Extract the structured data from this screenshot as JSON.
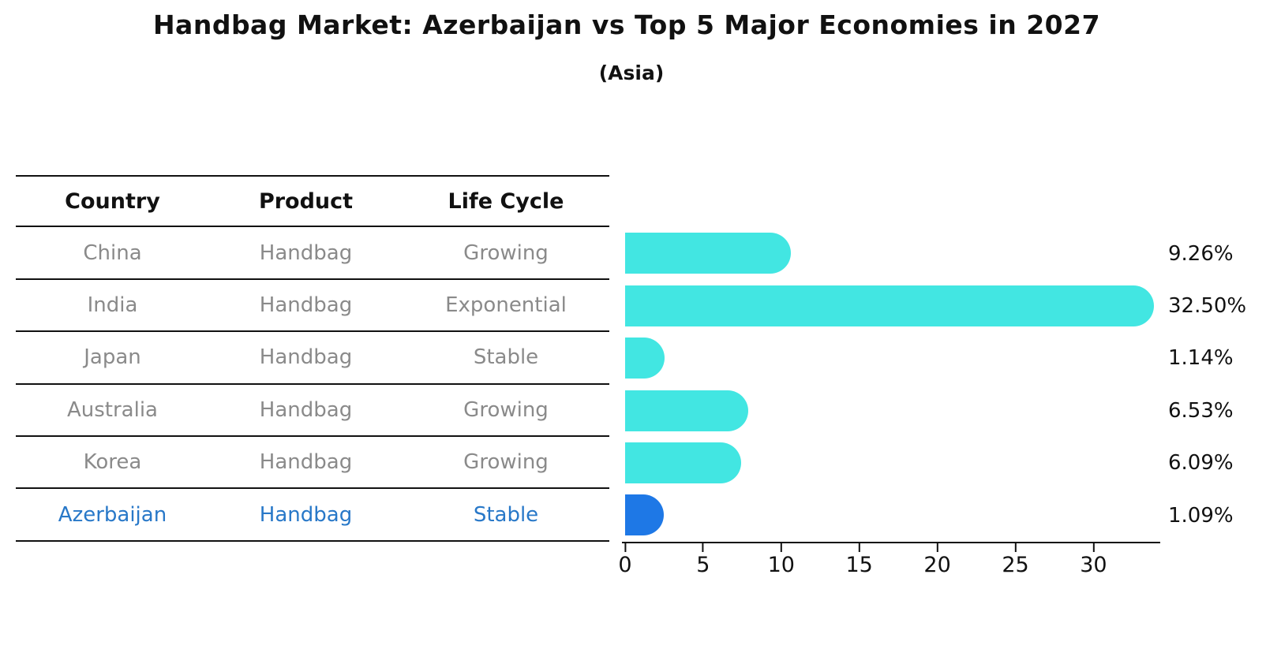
{
  "title": "Handbag Market: Azerbaijan vs Top 5 Major Economies in 2027",
  "subtitle": "(Asia)",
  "table": {
    "headers": {
      "country": "Country",
      "product": "Product",
      "life_cycle": "Life Cycle"
    },
    "rows": [
      {
        "country": "China",
        "product": "Handbag",
        "life_cycle": "Growing",
        "highlight": false
      },
      {
        "country": "India",
        "product": "Handbag",
        "life_cycle": "Exponential",
        "highlight": false
      },
      {
        "country": "Japan",
        "product": "Handbag",
        "life_cycle": "Stable",
        "highlight": false
      },
      {
        "country": "Australia",
        "product": "Handbag",
        "life_cycle": "Growing",
        "highlight": false
      },
      {
        "country": "Korea",
        "product": "Handbag",
        "life_cycle": "Growing",
        "highlight": false
      },
      {
        "country": "Azerbaijan",
        "product": "Handbag",
        "life_cycle": "Stable",
        "highlight": true
      }
    ]
  },
  "chart_data": {
    "type": "bar",
    "orientation": "horizontal",
    "title": "Handbag Market: Azerbaijan vs Top 5 Major Economies in 2027",
    "subtitle": "(Asia)",
    "categories": [
      "China",
      "India",
      "Japan",
      "Australia",
      "Korea",
      "Azerbaijan"
    ],
    "values": [
      9.26,
      32.5,
      1.14,
      6.53,
      6.09,
      1.09
    ],
    "labels": [
      "9.26%",
      "32.50%",
      "1.14%",
      "6.53%",
      "6.09%",
      "1.09%"
    ],
    "x_ticks": [
      0,
      5,
      10,
      15,
      20,
      25,
      30
    ],
    "xlim": [
      0,
      34.3
    ],
    "xlabel": "",
    "ylabel": "",
    "grid": false,
    "legend": "none",
    "bar_colors": [
      "#42e6e2",
      "#42e6e2",
      "#42e6e2",
      "#42e6e2",
      "#42e6e2",
      "#1e78e6"
    ]
  },
  "colors": {
    "bar_cyan": "#42e6e2",
    "bar_blue": "#1e78e6",
    "highlight_text": "#2878c8",
    "body_text": "#8a8a8a",
    "axis": "#111111"
  }
}
